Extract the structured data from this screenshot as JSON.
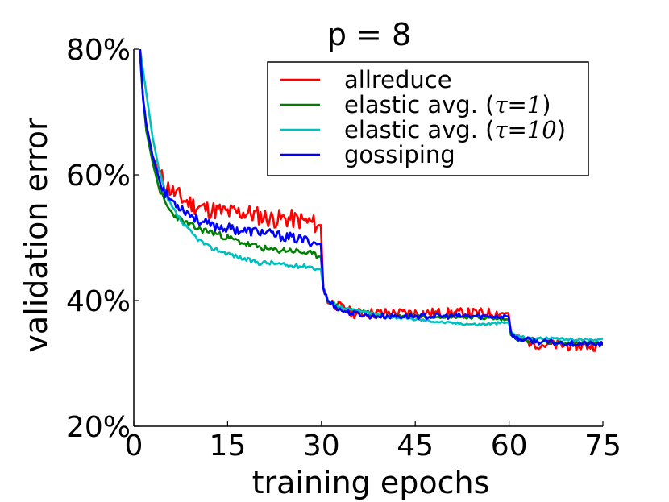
{
  "chart_data": {
    "type": "line",
    "title": "p = 8",
    "xlabel": "training epochs",
    "ylabel": "validation error",
    "xlim": [
      0,
      75
    ],
    "ylim": [
      20,
      80
    ],
    "xticks": [
      0,
      15,
      30,
      45,
      60,
      75
    ],
    "xtick_labels": [
      "0",
      "15",
      "30",
      "45",
      "60",
      "75"
    ],
    "yticks": [
      20,
      40,
      60,
      80
    ],
    "ytick_labels": [
      "20%",
      "40%",
      "60%",
      "80%"
    ],
    "legend_position": "top-right",
    "legend": [
      {
        "prefix": "allreduce",
        "tau": "",
        "suffix": ""
      },
      {
        "prefix": "elastic avg. (",
        "tau": "τ=1",
        "suffix": ")"
      },
      {
        "prefix": "elastic avg. (",
        "tau": "τ=10",
        "suffix": ")"
      },
      {
        "prefix": "gossiping",
        "tau": "",
        "suffix": ""
      }
    ],
    "series": [
      {
        "name": "allreduce",
        "color": "#ff0000",
        "noise": 1.5,
        "seed": 11,
        "points": [
          [
            1,
            79
          ],
          [
            1.5,
            72
          ],
          [
            2,
            68
          ],
          [
            3,
            63
          ],
          [
            4,
            60.5
          ],
          [
            5,
            58.5
          ],
          [
            6,
            57.5
          ],
          [
            8,
            56
          ],
          [
            10,
            55
          ],
          [
            12,
            54.5
          ],
          [
            15,
            54
          ],
          [
            18,
            54
          ],
          [
            20,
            53.5
          ],
          [
            22,
            53
          ],
          [
            25,
            53
          ],
          [
            28,
            52.5
          ],
          [
            29.5,
            52
          ],
          [
            29.9,
            52
          ],
          [
            30.3,
            42
          ],
          [
            31,
            40
          ],
          [
            33,
            39
          ],
          [
            35,
            38
          ],
          [
            38,
            38
          ],
          [
            40,
            38
          ],
          [
            45,
            38
          ],
          [
            50,
            38
          ],
          [
            55,
            38
          ],
          [
            59.5,
            38
          ],
          [
            59.9,
            38
          ],
          [
            60.3,
            35
          ],
          [
            61,
            34
          ],
          [
            63,
            33.5
          ],
          [
            65,
            33
          ],
          [
            70,
            32.8
          ],
          [
            75,
            32.8
          ]
        ]
      },
      {
        "name": "elastic avg. (τ=1)",
        "color": "#008000",
        "noise": 0.5,
        "seed": 23,
        "points": [
          [
            1,
            79
          ],
          [
            1.5,
            72
          ],
          [
            2,
            67
          ],
          [
            3,
            62
          ],
          [
            4,
            58
          ],
          [
            5,
            55.5
          ],
          [
            6,
            54
          ],
          [
            8,
            52.5
          ],
          [
            10,
            51.5
          ],
          [
            12,
            51
          ],
          [
            15,
            50
          ],
          [
            18,
            49
          ],
          [
            20,
            48.5
          ],
          [
            22,
            48
          ],
          [
            25,
            48
          ],
          [
            28,
            47.5
          ],
          [
            29.5,
            47
          ],
          [
            29.9,
            47
          ],
          [
            30.3,
            42
          ],
          [
            31,
            40
          ],
          [
            33,
            39
          ],
          [
            35,
            38.5
          ],
          [
            38,
            38
          ],
          [
            40,
            37.5
          ],
          [
            45,
            37.5
          ],
          [
            50,
            37.5
          ],
          [
            55,
            37.3
          ],
          [
            59.5,
            37
          ],
          [
            59.9,
            37
          ],
          [
            60.3,
            34.5
          ],
          [
            61,
            34
          ],
          [
            63,
            33.5
          ],
          [
            65,
            33.3
          ],
          [
            70,
            33.2
          ],
          [
            75,
            33.2
          ]
        ]
      },
      {
        "name": "elastic avg. (τ=10)",
        "color": "#00bfbf",
        "noise": 0.35,
        "seed": 37,
        "points": [
          [
            1,
            80
          ],
          [
            2,
            73
          ],
          [
            3,
            66
          ],
          [
            4,
            61
          ],
          [
            5,
            57
          ],
          [
            6,
            55
          ],
          [
            8,
            52
          ],
          [
            10,
            50
          ],
          [
            12,
            48.5
          ],
          [
            15,
            47.5
          ],
          [
            18,
            46.5
          ],
          [
            20,
            46
          ],
          [
            22,
            46
          ],
          [
            25,
            45.5
          ],
          [
            28,
            45.5
          ],
          [
            29.5,
            45
          ],
          [
            29.9,
            45
          ],
          [
            30.3,
            42
          ],
          [
            31,
            40
          ],
          [
            33,
            39
          ],
          [
            35,
            38.5
          ],
          [
            38,
            38
          ],
          [
            40,
            37.5
          ],
          [
            45,
            37
          ],
          [
            50,
            36.5
          ],
          [
            55,
            36.2
          ],
          [
            59.5,
            36.5
          ],
          [
            59.9,
            36.5
          ],
          [
            60.3,
            35
          ],
          [
            61,
            34.5
          ],
          [
            63,
            34
          ],
          [
            65,
            34
          ],
          [
            70,
            33.8
          ],
          [
            75,
            33.8
          ]
        ]
      },
      {
        "name": "gossiping",
        "color": "#0000ff",
        "noise": 0.8,
        "seed": 53,
        "points": [
          [
            1,
            80
          ],
          [
            1.5,
            72
          ],
          [
            2,
            68
          ],
          [
            3,
            63
          ],
          [
            4,
            59.5
          ],
          [
            5,
            57
          ],
          [
            6,
            56
          ],
          [
            8,
            54.5
          ],
          [
            10,
            53
          ],
          [
            12,
            52
          ],
          [
            15,
            51.5
          ],
          [
            18,
            51
          ],
          [
            20,
            51
          ],
          [
            22,
            50.5
          ],
          [
            25,
            50
          ],
          [
            28,
            49.5
          ],
          [
            29.5,
            49
          ],
          [
            29.9,
            49
          ],
          [
            30.3,
            42
          ],
          [
            31,
            40
          ],
          [
            33,
            38.5
          ],
          [
            35,
            38
          ],
          [
            38,
            37.5
          ],
          [
            40,
            37.5
          ],
          [
            45,
            37.5
          ],
          [
            50,
            37.5
          ],
          [
            55,
            37.5
          ],
          [
            59.5,
            37.5
          ],
          [
            59.9,
            37.5
          ],
          [
            60.3,
            35
          ],
          [
            61,
            34
          ],
          [
            63,
            33.7
          ],
          [
            65,
            33.4
          ],
          [
            70,
            33.2
          ],
          [
            75,
            33
          ]
        ]
      }
    ]
  }
}
